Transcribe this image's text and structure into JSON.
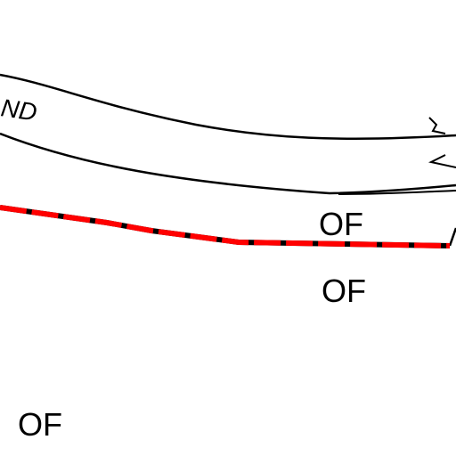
{
  "map": {
    "road_name_fragment": "ND",
    "zone_labels": [
      "OF",
      "OF",
      "OF"
    ],
    "colors": {
      "background": "#ffffff",
      "road_outline": "#000000",
      "boundary_base": "#000000",
      "boundary_dash": "#ff0000",
      "label": "#000000"
    }
  }
}
